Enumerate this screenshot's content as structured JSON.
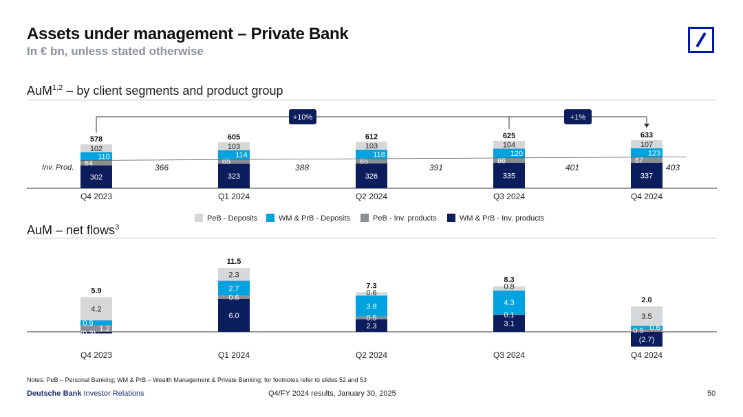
{
  "header": {
    "title": "Assets under management – Private Bank",
    "subtitle": "In € bn, unless stated otherwise"
  },
  "section1": {
    "title": "AuM",
    "sup": "1,2",
    "rest": " – by client segments and product group"
  },
  "section2": {
    "title": "AuM – net flows",
    "sup": "3"
  },
  "colors": {
    "peb_dep": "#d6d7d9",
    "wm_dep": "#00a3e0",
    "peb_inv": "#8a8f94",
    "wm_inv": "#0b1d5c",
    "navy": "#0b1d5c",
    "brand": "#0018a8"
  },
  "chart_data": [
    {
      "type": "bar",
      "title": "AuM – by client segments and product group",
      "stacked": true,
      "categories": [
        "Q4 2023",
        "Q1 2024",
        "Q2 2024",
        "Q3 2024",
        "Q4 2024"
      ],
      "series": [
        {
          "name": "WM & PrB - Inv. products",
          "values": [
            302,
            323,
            326,
            335,
            337
          ]
        },
        {
          "name": "PeB - Inv. products",
          "values": [
            64,
            65,
            65,
            66,
            67
          ]
        },
        {
          "name": "WM & PrB - Deposits",
          "values": [
            110,
            114,
            118,
            120,
            123
          ]
        },
        {
          "name": "PeB - Deposits",
          "values": [
            102,
            103,
            103,
            104,
            107
          ]
        }
      ],
      "totals": [
        "578",
        "605",
        "612",
        "625",
        "633"
      ],
      "inv_prod_label": "Inv. Prod.",
      "inv_prod_totals": [
        "366",
        "388",
        "391",
        "401",
        "403"
      ],
      "growth_badges": [
        "+10%",
        "+1%"
      ]
    },
    {
      "type": "bar",
      "title": "AuM – net flows",
      "stacked": true,
      "categories": [
        "Q4 2023",
        "Q1 2024",
        "Q2 2024",
        "Q3 2024",
        "Q4 2024"
      ],
      "series": [
        {
          "name": "WM & PrB - Inv. products",
          "values": [
            -0.3,
            6.0,
            2.3,
            3.1,
            -2.7
          ]
        },
        {
          "name": "PeB - Inv. products",
          "values": [
            1.2,
            0.6,
            0.5,
            0.1,
            0.5
          ]
        },
        {
          "name": "WM & PrB - Deposits",
          "values": [
            0.9,
            2.7,
            3.8,
            4.3,
            0.6
          ]
        },
        {
          "name": "PeB - Deposits",
          "values": [
            4.2,
            2.3,
            0.6,
            0.8,
            3.5
          ]
        }
      ],
      "labels": [
        [
          "(0.3)",
          "6.0",
          "2.3",
          "3.1",
          "(2.7)"
        ],
        [
          "1.2",
          "0.6",
          "0.5",
          "0.1",
          "0.5"
        ],
        [
          "0.9",
          "2.7",
          "3.8",
          "4.3",
          "0.6"
        ],
        [
          "4.2",
          "2.3",
          "0.6",
          "0.8",
          "3.5"
        ]
      ],
      "totals": [
        "5.9",
        "11.5",
        "7.3",
        "8.3",
        "2.0"
      ]
    }
  ],
  "legend": [
    "PeB - Deposits",
    "WM & PrB - Deposits",
    "PeB - Inv. products",
    "WM & PrB - Inv. products"
  ],
  "footer": {
    "notes": "Notes: PeB – Personal Banking; WM & PrB – Wealth Management & Private Banking; for footnotes refer to slides 52 and 53",
    "brand_bold": "Deutsche Bank",
    "brand_rest": " Investor Relations",
    "event": "Q4/FY 2024 results, January 30, 2025",
    "page": "50"
  }
}
